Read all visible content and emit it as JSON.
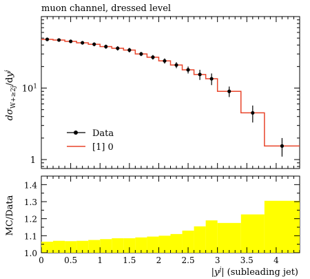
{
  "chart_data": {
    "type": "line",
    "title": "muon channel, dressed level",
    "top_panel": {
      "ylabel": "dσ_{W+≥2j}/dy^j",
      "yscale": "log",
      "ylim": [
        0.75,
        100
      ],
      "yticks": [
        {
          "value": 1,
          "label": "1"
        },
        {
          "value": 10,
          "label": "10^1"
        }
      ]
    },
    "bottom_panel": {
      "ylabel": "MC/Data",
      "ylim": [
        1.0,
        1.45
      ],
      "yticks": [
        1.0,
        1.1,
        1.2,
        1.3,
        1.4
      ],
      "ytick_labels": [
        "1.0",
        "1.1",
        "1.2",
        "1.3",
        "1.4"
      ]
    },
    "xlabel": "|y^j| (subleading jet)",
    "xlim": [
      0,
      4.4
    ],
    "xticks": [
      0,
      0.5,
      1,
      1.5,
      2,
      2.5,
      3,
      3.5,
      4
    ],
    "xtick_labels": [
      "0",
      "0.5",
      "1",
      "1.5",
      "2",
      "2.5",
      "3",
      "3.5",
      "4"
    ],
    "bin_edges": [
      0,
      0.2,
      0.4,
      0.6,
      0.8,
      1.0,
      1.2,
      1.4,
      1.6,
      1.8,
      2.0,
      2.2,
      2.4,
      2.6,
      2.8,
      3.0,
      3.4,
      3.8,
      4.4
    ],
    "series": [
      {
        "name": "Data",
        "kind": "points",
        "x": [
          0.1,
          0.3,
          0.5,
          0.7,
          0.9,
          1.1,
          1.3,
          1.5,
          1.7,
          1.9,
          2.1,
          2.3,
          2.5,
          2.7,
          2.9,
          3.2,
          3.6,
          4.1
        ],
        "y": [
          48,
          47,
          45,
          43,
          41,
          38,
          36,
          34,
          30,
          27,
          24,
          21,
          18,
          15.5,
          13.5,
          9,
          4.5,
          1.55
        ],
        "yerr": [
          2.5,
          2.5,
          2.5,
          2.5,
          2.5,
          2.5,
          2.5,
          2.5,
          2.0,
          2.0,
          2.0,
          2.0,
          2.0,
          2.5,
          2.5,
          1.5,
          1.2,
          0.45
        ],
        "color": "#000000"
      },
      {
        "name": "[1] 0",
        "kind": "histogram",
        "y": [
          48,
          47,
          45,
          43,
          41,
          38,
          36,
          34,
          30,
          27,
          24,
          21,
          18,
          15.5,
          13.5,
          9,
          4.5,
          1.55
        ],
        "color": "#e8442a"
      }
    ],
    "ratio": {
      "values": [
        1.065,
        1.07,
        1.068,
        1.07,
        1.075,
        1.08,
        1.085,
        1.085,
        1.09,
        1.095,
        1.1,
        1.11,
        1.13,
        1.155,
        1.19,
        1.175,
        1.225,
        1.305
      ],
      "color": "#ffff00"
    },
    "legend": {
      "placement": "lower-left",
      "entries": [
        "Data",
        "[1] 0"
      ]
    }
  }
}
